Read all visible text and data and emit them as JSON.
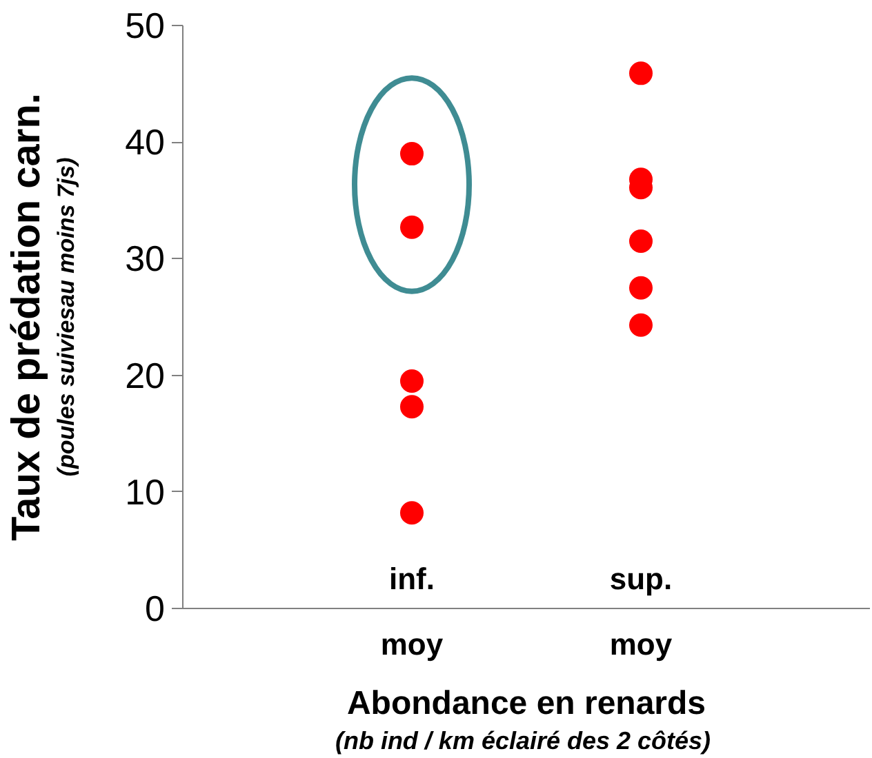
{
  "chart_data": {
    "type": "scatter",
    "ylabel": "Taux de prédation carn.",
    "xlabel": "Abondance en renards",
    "annotations": [
      "(poules suiviesau moins 7js)",
      "(nb ind  / km éclairé des 2 côtés)"
    ],
    "categories": [
      "inf.\nmoy",
      "sup.\nmoy"
    ],
    "series": [
      {
        "color": "#ff0000",
        "x": [
          "inf.\nmoy",
          "inf.\nmoy",
          "inf.\nmoy",
          "inf.\nmoy",
          "inf.\nmoy"
        ],
        "values": [
          39.0,
          32.7,
          19.5,
          17.3,
          8.2
        ]
      },
      {
        "color": "#ff0000",
        "x": [
          "sup.\nmoy",
          "sup.\nmoy",
          "sup.\nmoy",
          "sup.\nmoy",
          "sup.\nmoy",
          "sup.\nmoy"
        ],
        "values": [
          45.9,
          36.8,
          36.1,
          31.5,
          27.5,
          24.3
        ]
      }
    ],
    "ylim": [
      0,
      50
    ],
    "yticks": [
      0,
      10,
      20,
      30,
      40,
      50
    ],
    "grid": false,
    "marker": "circle"
  }
}
